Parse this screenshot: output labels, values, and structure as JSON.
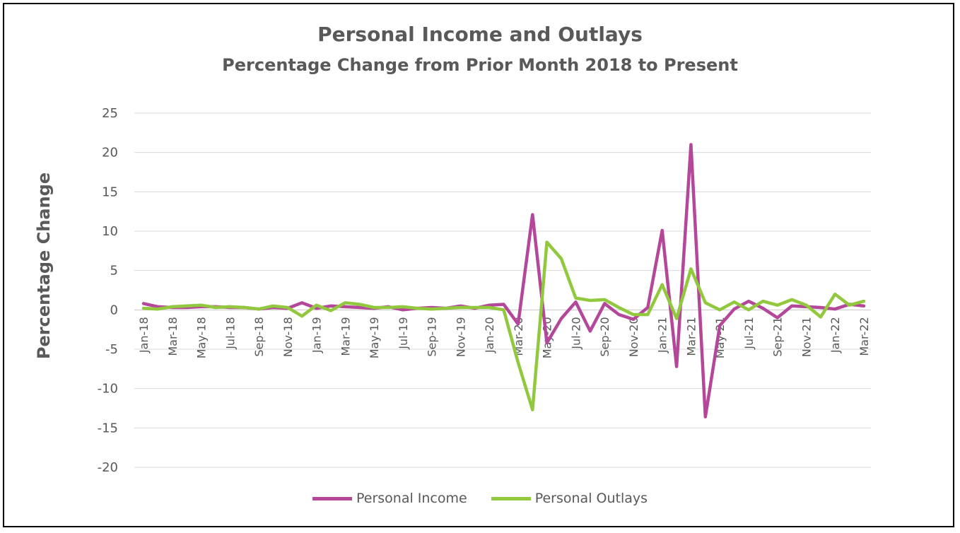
{
  "chart_data": {
    "type": "line",
    "title": "Personal Income and Outlays",
    "subtitle": "Percentage Change from Prior Month 2018 to Present",
    "ylabel": "Percentage Change",
    "xlabel": "",
    "ylim": [
      -20,
      25
    ],
    "yticks": [
      25,
      20,
      15,
      10,
      5,
      0,
      -5,
      -10,
      -15,
      -20
    ],
    "grid": true,
    "legend_position": "bottom",
    "x": [
      "Jan-18",
      "Feb-18",
      "Mar-18",
      "Apr-18",
      "May-18",
      "Jun-18",
      "Jul-18",
      "Aug-18",
      "Sep-18",
      "Oct-18",
      "Nov-18",
      "Dec-18",
      "Jan-19",
      "Feb-19",
      "Mar-19",
      "Apr-19",
      "May-19",
      "Jun-19",
      "Jul-19",
      "Aug-19",
      "Sep-19",
      "Oct-19",
      "Nov-19",
      "Dec-19",
      "Jan-20",
      "Feb-20",
      "Mar-20",
      "Apr-20",
      "May-20",
      "Jun-20",
      "Jul-20",
      "Aug-20",
      "Sep-20",
      "Oct-20",
      "Nov-20",
      "Dec-20",
      "Jan-21",
      "Feb-21",
      "Mar-21",
      "Apr-21",
      "May-21",
      "Jun-21",
      "Jul-21",
      "Aug-21",
      "Sep-21",
      "Oct-21",
      "Nov-21",
      "Dec-21",
      "Jan-22",
      "Feb-22",
      "Mar-22"
    ],
    "x_tick_labels": [
      "Jan-18",
      "Mar-18",
      "May-18",
      "Jul-18",
      "Sep-18",
      "Nov-18",
      "Jan-19",
      "Mar-19",
      "May-19",
      "Jul-19",
      "Sep-19",
      "Nov-19",
      "Jan-20",
      "Mar-20",
      "May-20",
      "Jul-20",
      "Sep-20",
      "Nov-20",
      "Jan-21",
      "Mar-21",
      "May-21",
      "Jul-21",
      "Sep-21",
      "Nov-21",
      "Jan-22",
      "Mar-22"
    ],
    "series": [
      {
        "name": "Personal Income",
        "color": "#b5479b",
        "values": [
          0.8,
          0.4,
          0.3,
          0.3,
          0.4,
          0.4,
          0.3,
          0.3,
          0.1,
          0.3,
          0.2,
          0.9,
          0.2,
          0.5,
          0.4,
          0.3,
          0.2,
          0.4,
          0.0,
          0.2,
          0.3,
          0.2,
          0.5,
          0.2,
          0.6,
          0.7,
          -1.8,
          12.1,
          -4.2,
          -1.1,
          1.0,
          -2.7,
          0.8,
          -0.6,
          -1.2,
          0.3,
          10.1,
          -7.2,
          21.0,
          -13.6,
          -2.0,
          0.1,
          1.1,
          0.2,
          -1.0,
          0.5,
          0.4,
          0.3,
          0.1,
          0.7,
          0.5
        ]
      },
      {
        "name": "Personal Outlays",
        "color": "#92c83e",
        "values": [
          0.2,
          0.1,
          0.4,
          0.5,
          0.6,
          0.3,
          0.4,
          0.3,
          0.1,
          0.5,
          0.3,
          -0.8,
          0.6,
          -0.1,
          0.9,
          0.7,
          0.3,
          0.3,
          0.4,
          0.2,
          0.1,
          0.2,
          0.3,
          0.3,
          0.3,
          0.0,
          -6.7,
          -12.7,
          8.6,
          6.5,
          1.5,
          1.2,
          1.3,
          0.3,
          -0.6,
          -0.6,
          3.2,
          -1.1,
          5.2,
          0.9,
          0.0,
          1.0,
          0.0,
          1.1,
          0.6,
          1.3,
          0.6,
          -0.9,
          2.0,
          0.6,
          1.1
        ]
      }
    ]
  }
}
